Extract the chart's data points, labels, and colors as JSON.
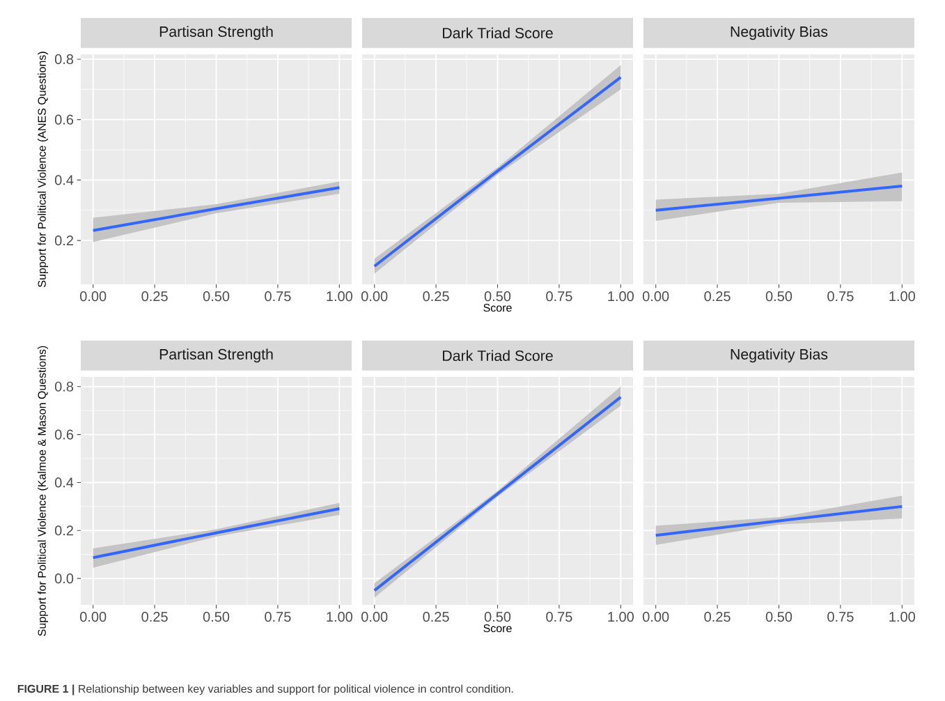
{
  "chart_data": [
    {
      "type": "line",
      "title": "Partisan Strength",
      "ylabel": "Support for Political Violence (ANES Questions)",
      "annotations": [
        "**FIGURE 1 |** Relationship between key variables and support for political violence in control condition."
      ],
      "x": [
        0,
        0.5,
        1
      ],
      "series": [
        {
          "color": "#3366ff",
          "values": [
            0.233,
            0.305,
            0.375
          ],
          "lower": [
            0.195,
            0.29,
            0.355
          ],
          "upper": [
            0.275,
            0.32,
            0.395
          ]
        }
      ],
      "xlim": [
        -0.05,
        1.05
      ],
      "ylim": [
        0.055,
        0.816
      ],
      "xticks": [
        {
          "value": 0,
          "label": "0.00"
        },
        {
          "value": 0.25,
          "label": "0.25"
        },
        {
          "value": 0.5,
          "label": "0.50"
        },
        {
          "value": 0.75,
          "label": "0.75"
        },
        {
          "value": 1,
          "label": "1.00"
        }
      ],
      "yticks": [
        0.2,
        0.4,
        0.6,
        0.8
      ],
      "grid": true
    },
    {
      "type": "line",
      "title": "Dark Triad Score",
      "xlabel": "Score",
      "x": [
        0,
        0.5,
        1
      ],
      "series": [
        {
          "color": "#3366ff",
          "values": [
            0.115,
            0.43,
            0.74
          ],
          "lower": [
            0.09,
            0.418,
            0.7
          ],
          "upper": [
            0.14,
            0.442,
            0.78
          ]
        }
      ],
      "xlim": [
        -0.05,
        1.05
      ],
      "ylim": [
        0.055,
        0.816
      ],
      "xticks": [
        {
          "value": 0,
          "label": "0.00"
        },
        {
          "value": 0.25,
          "label": "0.25"
        },
        {
          "value": 0.5,
          "label": "0.50"
        },
        {
          "value": 0.75,
          "label": "0.75"
        },
        {
          "value": 1,
          "label": "1.00"
        }
      ],
      "yticks": [
        0.2,
        0.4,
        0.6,
        0.8
      ],
      "grid": true,
      "tick_labels": "x"
    },
    {
      "type": "line",
      "title": "Negativity Bias",
      "x": [
        0,
        0.5,
        1
      ],
      "series": [
        {
          "color": "#3366ff",
          "values": [
            0.3,
            0.34,
            0.38
          ],
          "lower": [
            0.265,
            0.325,
            0.33
          ],
          "upper": [
            0.335,
            0.355,
            0.425
          ]
        }
      ],
      "xlim": [
        -0.05,
        1.05
      ],
      "ylim": [
        0.055,
        0.816
      ],
      "xticks": [
        {
          "value": 0,
          "label": "0.00"
        },
        {
          "value": 0.25,
          "label": "0.25"
        },
        {
          "value": 0.5,
          "label": "0.50"
        },
        {
          "value": 0.75,
          "label": "0.75"
        },
        {
          "value": 1,
          "label": "1.00"
        }
      ],
      "yticks": [
        0.2,
        0.4,
        0.6,
        0.8
      ],
      "grid": true,
      "tick_labels": "x"
    },
    {
      "type": "line",
      "title": "Partisan Strength",
      "ylabel": "Support for Political Violence (Kalmoe & Mason Questions)",
      "x": [
        0,
        0.5,
        1
      ],
      "series": [
        {
          "color": "#3366ff",
          "values": [
            0.087,
            0.19,
            0.291
          ],
          "lower": [
            0.045,
            0.175,
            0.265
          ],
          "upper": [
            0.125,
            0.205,
            0.315
          ]
        }
      ],
      "xlim": [
        -0.05,
        1.05
      ],
      "ylim": [
        -0.11,
        0.84
      ],
      "xticks": [
        {
          "value": 0,
          "label": "0.00"
        },
        {
          "value": 0.25,
          "label": "0.25"
        },
        {
          "value": 0.5,
          "label": "0.50"
        },
        {
          "value": 0.75,
          "label": "0.75"
        },
        {
          "value": 1,
          "label": "1.00"
        }
      ],
      "yticks": [
        {
          "value": 0,
          "label": "0.0"
        },
        0.2,
        0.4,
        0.6,
        0.8
      ],
      "grid": true
    },
    {
      "type": "line",
      "title": "Dark Triad Score",
      "xlabel": "Score",
      "x": [
        0,
        0.5,
        1
      ],
      "series": [
        {
          "color": "#3366ff",
          "values": [
            -0.05,
            0.353,
            0.756
          ],
          "lower": [
            -0.08,
            0.341,
            0.72
          ],
          "upper": [
            -0.02,
            0.365,
            0.8
          ]
        }
      ],
      "xlim": [
        -0.05,
        1.05
      ],
      "ylim": [
        -0.11,
        0.84
      ],
      "xticks": [
        {
          "value": 0,
          "label": "0.00"
        },
        {
          "value": 0.25,
          "label": "0.25"
        },
        {
          "value": 0.5,
          "label": "0.50"
        },
        {
          "value": 0.75,
          "label": "0.75"
        },
        {
          "value": 1,
          "label": "1.00"
        }
      ],
      "yticks": [
        0,
        0.2,
        0.4,
        0.6,
        0.8
      ],
      "grid": true,
      "tick_labels": "x"
    },
    {
      "type": "line",
      "title": "Negativity Bias",
      "x": [
        0,
        0.5,
        1
      ],
      "series": [
        {
          "color": "#3366ff",
          "values": [
            0.18,
            0.24,
            0.3
          ],
          "lower": [
            0.14,
            0.225,
            0.25
          ],
          "upper": [
            0.22,
            0.255,
            0.345
          ]
        }
      ],
      "xlim": [
        -0.05,
        1.05
      ],
      "ylim": [
        -0.11,
        0.84
      ],
      "xticks": [
        {
          "value": 0,
          "label": "0.00"
        },
        {
          "value": 0.25,
          "label": "0.25"
        },
        {
          "value": 0.5,
          "label": "0.50"
        },
        {
          "value": 0.75,
          "label": "0.75"
        },
        {
          "value": 1,
          "label": "1.00"
        }
      ],
      "yticks": [
        0,
        0.2,
        0.4,
        0.6,
        0.8
      ],
      "grid": true,
      "tick_labels": "x"
    }
  ]
}
